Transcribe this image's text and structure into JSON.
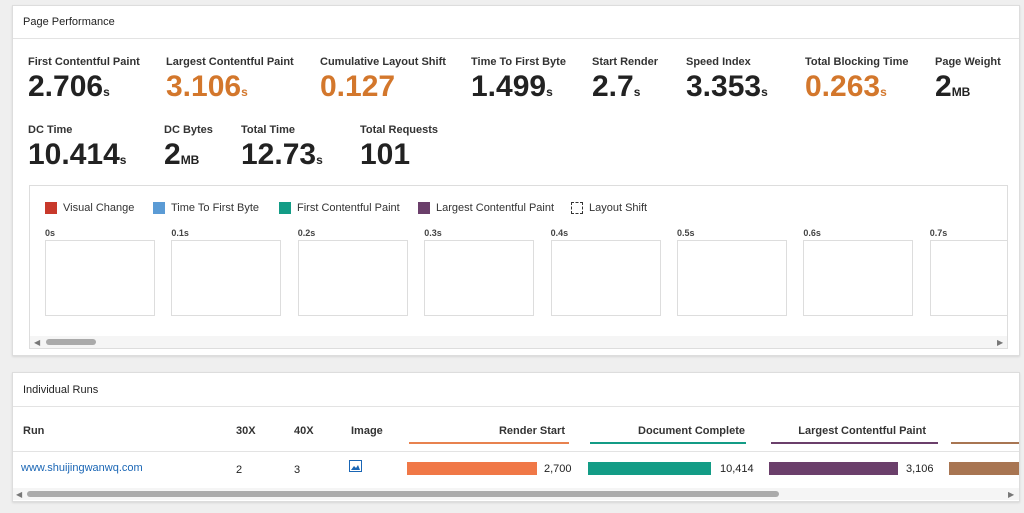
{
  "performance": {
    "title": "Page Performance",
    "metrics": [
      {
        "label": "First Contentful Paint",
        "value": 2.706,
        "unit": "s"
      },
      {
        "label": "Largest Contentful Paint",
        "value": 3.106,
        "unit": "s",
        "warn": true
      },
      {
        "label": "Cumulative Layout Shift",
        "value": 0.127,
        "warn": true
      },
      {
        "label": "Time To First Byte",
        "value": 1.499,
        "unit": "s"
      },
      {
        "label": "Start Render",
        "value": 2.7,
        "unit": "s"
      },
      {
        "label": "Speed Index",
        "value": 3.353,
        "unit": "s"
      },
      {
        "label": "Total Blocking Time",
        "value": 0.263,
        "unit": "s",
        "warn": true
      },
      {
        "label": "Page Weight",
        "value": 2,
        "unit": "MB"
      },
      {
        "label": "DC Time",
        "value": 10.414,
        "unit": "s"
      },
      {
        "label": "DC Bytes",
        "value": 2,
        "unit": "MB"
      },
      {
        "label": "Total Time",
        "value": 12.73,
        "unit": "s"
      },
      {
        "label": "Total Requests",
        "value": 101
      }
    ],
    "legend": [
      "Visual Change",
      "Time To First Byte",
      "First Contentful Paint",
      "Largest Contentful Paint",
      "Layout Shift"
    ],
    "frames": [
      "0s",
      "0.1s",
      "0.2s",
      "0.3s",
      "0.4s",
      "0.5s",
      "0.6s",
      "0.7s"
    ]
  },
  "runs": {
    "title": "Individual Runs",
    "columns": [
      "Run",
      "30X",
      "40X",
      "Image",
      "Render Start",
      "Document Complete",
      "Largest Contentful Paint"
    ],
    "rows": [
      {
        "run": "www.shuijingwanwq.com",
        "c30x": 2,
        "c40x": 3,
        "render_start": "2,700",
        "document_complete": "10,414",
        "lcp": "3,106"
      }
    ]
  }
}
